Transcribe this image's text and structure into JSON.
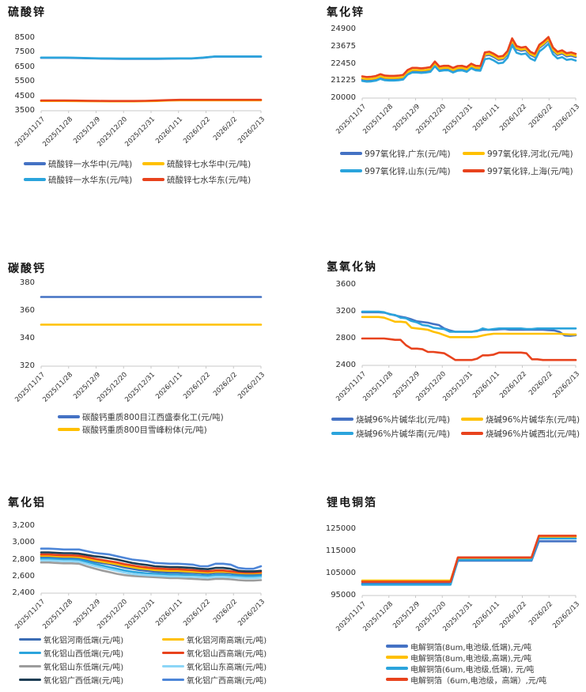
{
  "x_axis": {
    "dates": [
      "2025/11/17",
      "2025/11/28",
      "2025/12/9",
      "2025/12/20",
      "2025/12/31",
      "2026/1/11",
      "2026/1/22",
      "2026/2/2",
      "2026/2/13"
    ]
  },
  "chart_data": [
    {
      "type": "line",
      "title": "硫酸锌",
      "ylim": [
        3500,
        8500
      ],
      "yticks": [
        "8500",
        "7500",
        "6500",
        "5500",
        "4500",
        "3500"
      ],
      "legend_position": "bottom",
      "grid": false,
      "series": [
        {
          "name": "硫酸锌一水华中(元/吨)",
          "color": "#4472C4",
          "values": [
            7135,
            7135,
            7135,
            7125,
            7105,
            7085,
            7075,
            7065,
            7065,
            7065,
            7065,
            7075,
            7085,
            7085,
            7135,
            7215,
            7215,
            7215,
            7215,
            7215
          ]
        },
        {
          "name": "硫酸锌七水华中(元/吨)",
          "color": "#FFC000",
          "values": [
            4170,
            4170,
            4170,
            4165,
            4155,
            4145,
            4140,
            4140,
            4140,
            4150,
            4170,
            4200,
            4220,
            4220,
            4220,
            4220,
            4220,
            4220,
            4220,
            4220
          ]
        },
        {
          "name": "硫酸锌一水华东(元/吨)",
          "color": "#2BA4DC",
          "values": [
            7150,
            7150,
            7150,
            7140,
            7120,
            7100,
            7090,
            7080,
            7080,
            7080,
            7080,
            7090,
            7100,
            7100,
            7150,
            7230,
            7230,
            7230,
            7230,
            7230
          ]
        },
        {
          "name": "硫酸锌七水华东(元/吨)",
          "color": "#E8431D",
          "values": [
            4200,
            4200,
            4200,
            4195,
            4185,
            4175,
            4170,
            4170,
            4170,
            4180,
            4200,
            4230,
            4250,
            4250,
            4250,
            4250,
            4250,
            4250,
            4250,
            4250
          ]
        }
      ]
    },
    {
      "type": "line",
      "title": "氧化锌",
      "ylim": [
        20000,
        24900
      ],
      "yticks": [
        "24900",
        "23675",
        "22450",
        "21225",
        "20000"
      ],
      "legend_position": "bottom",
      "grid": false,
      "series": [
        {
          "name": "997氧化锌,广东(元/吨)",
          "color": "#4472C4",
          "values": [
            21320,
            21270,
            21290,
            21340,
            21470,
            21370,
            21350,
            21350,
            21370,
            21420,
            21770,
            21920,
            21920,
            21890,
            21920,
            21970,
            22370,
            22020,
            22070,
            22070,
            21920,
            22050,
            22070,
            21970,
            22220,
            22070,
            22050,
            23020,
            23070,
            22920,
            22720,
            22770,
            23120,
            24020,
            23470,
            23370,
            23420,
            23070,
            22920,
            23570,
            23820,
            24120,
            23370,
            23070,
            23170,
            22970,
            23020,
            22920
          ]
        },
        {
          "name": "997氧化锌,河北(元/吨)",
          "color": "#FFC000",
          "values": [
            21400,
            21350,
            21370,
            21420,
            21550,
            21450,
            21430,
            21430,
            21450,
            21500,
            21850,
            22000,
            22000,
            21970,
            22000,
            22050,
            22450,
            22100,
            22150,
            22150,
            22000,
            22130,
            22150,
            22050,
            22300,
            22150,
            22130,
            23100,
            23150,
            23000,
            22800,
            22850,
            23200,
            24100,
            23550,
            23450,
            23500,
            23150,
            23000,
            23650,
            23900,
            24200,
            23450,
            23150,
            23250,
            23050,
            23100,
            23000
          ]
        },
        {
          "name": "997氧化锌,山东(元/吨)",
          "color": "#2BA4DC",
          "values": [
            21220,
            21170,
            21190,
            21240,
            21370,
            21270,
            21250,
            21250,
            21270,
            21320,
            21670,
            21820,
            21820,
            21790,
            21820,
            21870,
            22270,
            21920,
            21970,
            21970,
            21820,
            21950,
            21970,
            21870,
            22120,
            21970,
            21950,
            22770,
            22820,
            22670,
            22470,
            22520,
            22870,
            23770,
            23220,
            23120,
            23170,
            22820,
            22670,
            23320,
            23570,
            23870,
            23120,
            22820,
            22920,
            22720,
            22770,
            22670
          ]
        },
        {
          "name": "997氧化锌,上海(元/吨)",
          "color": "#E8431D",
          "values": [
            21550,
            21500,
            21520,
            21570,
            21700,
            21600,
            21580,
            21580,
            21600,
            21650,
            22000,
            22150,
            22150,
            22120,
            22150,
            22200,
            22600,
            22250,
            22300,
            22300,
            22150,
            22280,
            22300,
            22200,
            22450,
            22300,
            22280,
            23250,
            23300,
            23150,
            22950,
            23000,
            23350,
            24250,
            23700,
            23600,
            23650,
            23300,
            23150,
            23800,
            24050,
            24350,
            23600,
            23300,
            23400,
            23200,
            23250,
            23150
          ]
        }
      ]
    },
    {
      "type": "line",
      "title": "碳酸钙",
      "ylim": [
        320,
        380
      ],
      "yticks": [
        "380",
        "360",
        "340",
        "320"
      ],
      "legend_position": "bottom",
      "grid": false,
      "series": [
        {
          "name": "碳酸钙重质800目江西盛泰化工(元/吨)",
          "color": "#4472C4",
          "values": [
            370,
            370
          ]
        },
        {
          "name": "碳酸钙重质800目雪峰粉体(元/吨)",
          "color": "#FFC000",
          "values": [
            350,
            350
          ]
        }
      ]
    },
    {
      "type": "line",
      "title": "氢氧化钠",
      "ylim": [
        2400,
        3600
      ],
      "yticks": [
        "3600",
        "3200",
        "2800",
        "2400"
      ],
      "legend_position": "bottom",
      "grid": false,
      "series": [
        {
          "name": "烧碱96%片碱华北(元/吨)",
          "color": "#4472C4",
          "values": [
            3190,
            3190,
            3190,
            3190,
            3185,
            3165,
            3145,
            3125,
            3110,
            3085,
            3055,
            3045,
            3035,
            3015,
            3000,
            2950,
            2920,
            2900,
            2900,
            2900,
            2900,
            2915,
            2930,
            2930,
            2930,
            2935,
            2940,
            2930,
            2930,
            2930,
            2930,
            2930,
            2930,
            2930,
            2925,
            2920,
            2900,
            2845,
            2840,
            2850
          ]
        },
        {
          "name": "烧碱96%片碱华东(元/吨)",
          "color": "#FFC000",
          "values": [
            3120,
            3120,
            3120,
            3120,
            3110,
            3080,
            3050,
            3050,
            3040,
            2960,
            2950,
            2940,
            2930,
            2900,
            2880,
            2850,
            2820,
            2820,
            2820,
            2820,
            2820,
            2825,
            2845,
            2860,
            2870,
            2870,
            2870,
            2870,
            2870,
            2870,
            2870,
            2870,
            2870,
            2870,
            2870,
            2870,
            2870,
            2865,
            2860,
            2860
          ]
        },
        {
          "name": "烧碱96%片碱华南(元/吨)",
          "color": "#2BA4DC",
          "values": [
            3200,
            3200,
            3200,
            3200,
            3190,
            3160,
            3150,
            3110,
            3100,
            3060,
            3040,
            3000,
            2990,
            2960,
            2950,
            2940,
            2900,
            2900,
            2900,
            2900,
            2900,
            2910,
            2950,
            2930,
            2940,
            2950,
            2950,
            2950,
            2950,
            2950,
            2940,
            2940,
            2950,
            2950,
            2950,
            2950,
            2950,
            2950,
            2950,
            2950
          ]
        },
        {
          "name": "烧碱96%片碱西北(元/吨)",
          "color": "#E8431D",
          "values": [
            2800,
            2800,
            2800,
            2800,
            2800,
            2790,
            2780,
            2780,
            2700,
            2650,
            2650,
            2640,
            2600,
            2600,
            2590,
            2580,
            2530,
            2480,
            2480,
            2480,
            2480,
            2500,
            2550,
            2550,
            2560,
            2590,
            2590,
            2590,
            2590,
            2590,
            2580,
            2490,
            2490,
            2480,
            2480,
            2480,
            2480,
            2480,
            2480,
            2480
          ]
        }
      ]
    },
    {
      "type": "line",
      "title": "氧化铝",
      "ylim": [
        2400,
        3200
      ],
      "yticks": [
        "3,200",
        "3,000",
        "2,800",
        "2,600",
        "2,400"
      ],
      "legend_position": "bottom",
      "grid": false,
      "series": [
        {
          "name": "氧化铝河南低端(元/吨)",
          "color": "#3B6CB4",
          "values": [
            2830,
            2830,
            2825,
            2820,
            2820,
            2815,
            2795,
            2775,
            2760,
            2745,
            2725,
            2705,
            2690,
            2675,
            2665,
            2655,
            2650,
            2645,
            2645,
            2640,
            2640,
            2635,
            2630,
            2640,
            2640,
            2635,
            2625,
            2620,
            2620,
            2625
          ]
        },
        {
          "name": "氧化铝河南高端(元/吨)",
          "color": "#FFC000",
          "values": [
            2845,
            2845,
            2840,
            2835,
            2835,
            2830,
            2810,
            2790,
            2775,
            2760,
            2745,
            2725,
            2710,
            2695,
            2685,
            2675,
            2670,
            2665,
            2665,
            2660,
            2655,
            2650,
            2645,
            2655,
            2655,
            2650,
            2640,
            2635,
            2635,
            2640
          ]
        },
        {
          "name": "氧化铝山西低端(元/吨)",
          "color": "#2BA4DC",
          "values": [
            2810,
            2810,
            2805,
            2800,
            2800,
            2795,
            2775,
            2750,
            2730,
            2710,
            2690,
            2670,
            2655,
            2645,
            2635,
            2630,
            2625,
            2620,
            2620,
            2615,
            2615,
            2610,
            2605,
            2615,
            2615,
            2610,
            2605,
            2600,
            2600,
            2605
          ]
        },
        {
          "name": "氧化铝山西高端(元/吨)",
          "color": "#E8431D",
          "values": [
            2860,
            2860,
            2855,
            2850,
            2850,
            2845,
            2830,
            2810,
            2795,
            2780,
            2765,
            2745,
            2730,
            2715,
            2705,
            2695,
            2690,
            2685,
            2685,
            2680,
            2675,
            2665,
            2660,
            2670,
            2670,
            2660,
            2650,
            2645,
            2645,
            2650
          ]
        },
        {
          "name": "氧化铝山东低端(元/吨)",
          "color": "#9C9C9C",
          "values": [
            2765,
            2765,
            2760,
            2755,
            2755,
            2750,
            2720,
            2695,
            2670,
            2650,
            2630,
            2615,
            2605,
            2600,
            2595,
            2590,
            2585,
            2580,
            2580,
            2575,
            2570,
            2565,
            2560,
            2570,
            2570,
            2565,
            2555,
            2550,
            2550,
            2555
          ]
        },
        {
          "name": "氧化铝山东高端(元/吨)",
          "color": "#8CD6F7",
          "values": [
            2790,
            2790,
            2785,
            2780,
            2780,
            2775,
            2750,
            2725,
            2705,
            2685,
            2665,
            2645,
            2630,
            2620,
            2615,
            2610,
            2605,
            2600,
            2600,
            2595,
            2595,
            2590,
            2585,
            2595,
            2595,
            2590,
            2585,
            2580,
            2580,
            2585
          ]
        },
        {
          "name": "氧化铝广西低端(元/吨)",
          "color": "#1F3E55",
          "values": [
            2885,
            2885,
            2880,
            2875,
            2875,
            2870,
            2855,
            2840,
            2830,
            2815,
            2800,
            2780,
            2760,
            2745,
            2735,
            2720,
            2715,
            2710,
            2710,
            2705,
            2700,
            2690,
            2685,
            2700,
            2700,
            2690,
            2665,
            2660,
            2660,
            2665
          ]
        },
        {
          "name": "氧化铝广西高端(元/吨)",
          "color": "#4E86D8",
          "values": [
            2930,
            2930,
            2925,
            2920,
            2920,
            2920,
            2900,
            2880,
            2870,
            2860,
            2840,
            2820,
            2800,
            2790,
            2780,
            2760,
            2755,
            2750,
            2750,
            2745,
            2740,
            2720,
            2720,
            2750,
            2750,
            2740,
            2700,
            2690,
            2690,
            2720
          ]
        }
      ]
    },
    {
      "type": "line",
      "title": "锂电铜箔",
      "ylim": [
        95000,
        125000
      ],
      "yticks": [
        "125000",
        "115000",
        "105000",
        "95000"
      ],
      "legend_position": "bottom",
      "grid": false,
      "series": [
        {
          "name": "电解铜箔(8um,电池级,低端),元/吨",
          "color": "#4472C4",
          "values": [
            100400,
            100400,
            100400,
            100400,
            100400,
            100400,
            100400,
            100400,
            100400,
            100400,
            100400,
            100400,
            100400,
            110700,
            110700,
            110700,
            110700,
            110700,
            110700,
            110700,
            110700,
            110700,
            110700,
            110700,
            119500,
            119500,
            119500,
            119500,
            119500,
            119500
          ]
        },
        {
          "name": "电解铜箔(8um,电池级,高端),元/吨",
          "color": "#FFC000",
          "values": [
            101800,
            101800,
            101800,
            101800,
            101800,
            101800,
            101800,
            101800,
            101800,
            101800,
            101800,
            101800,
            101800,
            111800,
            111800,
            111800,
            111800,
            111800,
            111800,
            111800,
            111800,
            111800,
            111800,
            111800,
            121500,
            121500,
            121500,
            121500,
            121500,
            121500
          ]
        },
        {
          "name": "电解铜箔(6um,电池级,低端), 元/吨",
          "color": "#2BA4DC",
          "values": [
            99900,
            99900,
            99900,
            99900,
            99900,
            99900,
            99900,
            99900,
            99900,
            99900,
            99900,
            99900,
            99900,
            111100,
            111100,
            111100,
            111100,
            111100,
            111100,
            111100,
            111100,
            111100,
            111100,
            111100,
            120700,
            120700,
            120700,
            120700,
            120700,
            120700
          ]
        },
        {
          "name": "电解铜箔（6um,电池级，高端）,元/吨",
          "color": "#E8431D",
          "values": [
            101200,
            101200,
            101200,
            101200,
            101200,
            101200,
            101200,
            101200,
            101200,
            101200,
            101200,
            101200,
            101200,
            112200,
            112200,
            112200,
            112200,
            112200,
            112200,
            112200,
            112200,
            112200,
            112200,
            112200,
            122000,
            122000,
            122000,
            122000,
            122000,
            122000
          ]
        }
      ]
    }
  ]
}
